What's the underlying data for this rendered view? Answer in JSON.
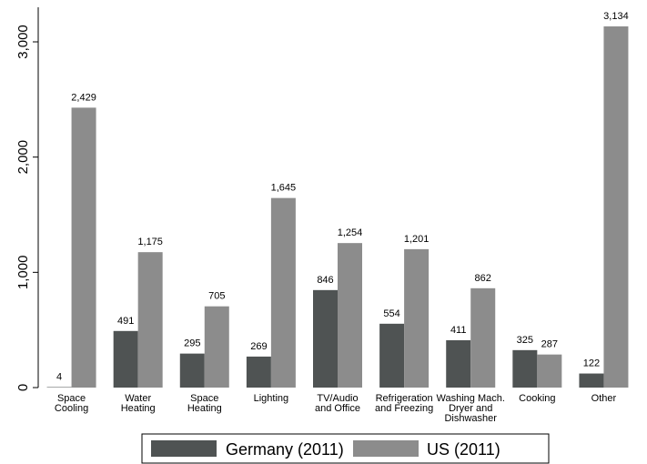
{
  "chart_data": {
    "type": "bar",
    "categories": [
      [
        "Space",
        "Cooling"
      ],
      [
        "Water",
        "Heating"
      ],
      [
        "Space",
        "Heating"
      ],
      [
        "Lighting"
      ],
      [
        "TV/Audio",
        "and Office"
      ],
      [
        "Refrigeration",
        "and Freezing"
      ],
      [
        "Washing Mach.",
        "Dryer and",
        "Dishwasher"
      ],
      [
        "Cooking"
      ],
      [
        "Other"
      ]
    ],
    "series": [
      {
        "name": "Germany (2011)",
        "color": "#4f5353",
        "values": [
          4,
          491,
          295,
          269,
          846,
          554,
          411,
          325,
          122
        ],
        "labels": [
          "4",
          "491",
          "295",
          "269",
          "846",
          "554",
          "411",
          "325",
          "122"
        ]
      },
      {
        "name": "US (2011)",
        "color": "#8c8c8c",
        "values": [
          2429,
          1175,
          705,
          1645,
          1254,
          1201,
          862,
          287,
          3134
        ],
        "labels": [
          "2,429",
          "1,175",
          "705",
          "1,645",
          "1,254",
          "1,201",
          "862",
          "287",
          "3,134"
        ]
      }
    ],
    "yticks": [
      0,
      1000,
      2000,
      3000
    ],
    "ytick_labels": [
      "0",
      "1,000",
      "2,000",
      "3,000"
    ],
    "ylim": [
      0,
      3300
    ],
    "title": "",
    "xlabel": "",
    "ylabel": "",
    "legend_position": "bottom",
    "grid": false
  }
}
